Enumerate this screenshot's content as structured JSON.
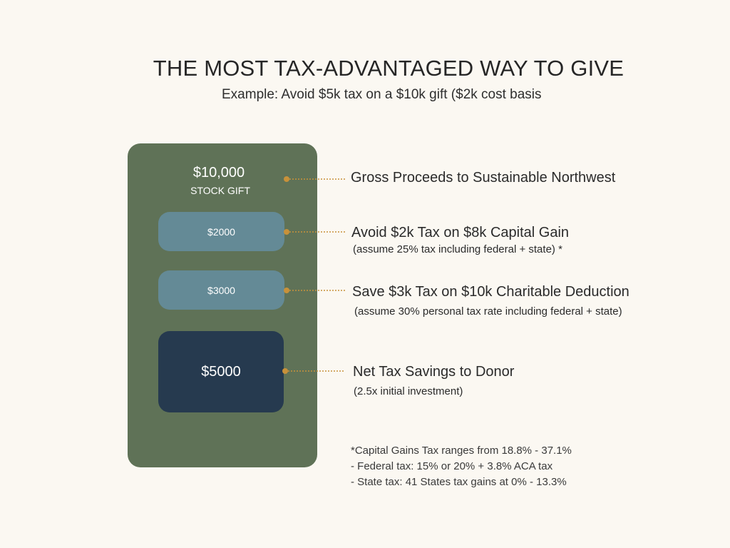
{
  "header": {
    "title": "THE MOST TAX-ADVANTAGED WAY TO GIVE",
    "subtitle": "Example: Avoid $5k tax on a $10k gift ($2k cost basis"
  },
  "panel": {
    "gift_amount": "$10,000",
    "gift_label": "STOCK GIFT",
    "box_1": "$2000",
    "box_2": "$3000",
    "box_3": "$5000"
  },
  "labels": [
    {
      "title": "Gross Proceeds to Sustainable Northwest",
      "note": ""
    },
    {
      "title": "Avoid $2k Tax on $8k Capital Gain",
      "note": "(assume 25% tax including federal + state) *"
    },
    {
      "title": "Save $3k Tax on $10k Charitable Deduction",
      "note": "(assume 30% personal tax rate including federal + state)"
    },
    {
      "title": "Net Tax Savings to Donor",
      "note": "(2.5x initial investment)"
    }
  ],
  "footnotes": [
    "*Capital Gains Tax ranges from 18.8% - 37.1%",
    "- Federal tax: 15% or 20% + 3.8% ACA tax",
    "- State tax: 41 States tax gains at 0% - 13.3%"
  ],
  "colors": {
    "panel": "#5f7257",
    "pill": "#648a96",
    "dark_box": "#263a4f",
    "connector": "#c8913a",
    "background": "#fbf8f2"
  }
}
